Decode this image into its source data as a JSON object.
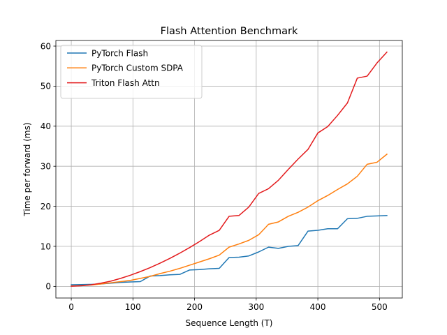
{
  "chart_data": {
    "type": "line",
    "title": "Flash Attention Benchmark",
    "xlabel": "Sequence Length (T)",
    "ylabel": "Time per forward (ms)",
    "xlim": [
      -25,
      537
    ],
    "ylim": [
      -2.9,
      61.4
    ],
    "x_ticks": [
      0,
      100,
      200,
      300,
      400,
      500
    ],
    "y_ticks": [
      0,
      10,
      20,
      30,
      40,
      50,
      60
    ],
    "grid": true,
    "legend_position": "top-left",
    "x": [
      0,
      16,
      32,
      48,
      64,
      80,
      96,
      112,
      128,
      144,
      160,
      176,
      192,
      208,
      224,
      240,
      256,
      272,
      288,
      304,
      320,
      336,
      352,
      368,
      384,
      400,
      416,
      432,
      448,
      464,
      480,
      496,
      512
    ],
    "series": [
      {
        "name": "PyTorch Flash",
        "color": "#1f77b4",
        "values": [
          0.4,
          0.45,
          0.5,
          0.6,
          0.8,
          1.0,
          1.1,
          1.2,
          2.6,
          2.7,
          2.9,
          3.0,
          4.1,
          4.2,
          4.4,
          4.5,
          7.2,
          7.3,
          7.6,
          8.6,
          9.8,
          9.5,
          10.0,
          10.2,
          13.8,
          14.0,
          14.4,
          14.4,
          16.9,
          17.0,
          17.5,
          17.6,
          17.7
        ]
      },
      {
        "name": "PyTorch Custom SDPA",
        "color": "#ff7f0e",
        "values": [
          0.1,
          0.2,
          0.35,
          0.6,
          0.9,
          1.2,
          1.5,
          2.0,
          2.5,
          3.2,
          3.8,
          4.5,
          5.3,
          6.1,
          6.9,
          7.8,
          9.8,
          10.6,
          11.5,
          12.9,
          15.5,
          16.1,
          17.5,
          18.5,
          19.8,
          21.4,
          22.7,
          24.2,
          25.6,
          27.5,
          30.5,
          31.0,
          33.0
        ]
      },
      {
        "name": "Triton Flash Attn",
        "color": "#e31a1c",
        "values": [
          0.05,
          0.15,
          0.4,
          0.8,
          1.3,
          2.0,
          2.8,
          3.7,
          4.7,
          5.8,
          7.0,
          8.3,
          9.7,
          11.2,
          12.8,
          14.0,
          17.5,
          17.7,
          19.8,
          23.2,
          24.4,
          26.5,
          29.2,
          31.8,
          34.2,
          38.3,
          39.9,
          42.7,
          45.8,
          52.0,
          52.5,
          55.8,
          58.5
        ]
      }
    ]
  }
}
